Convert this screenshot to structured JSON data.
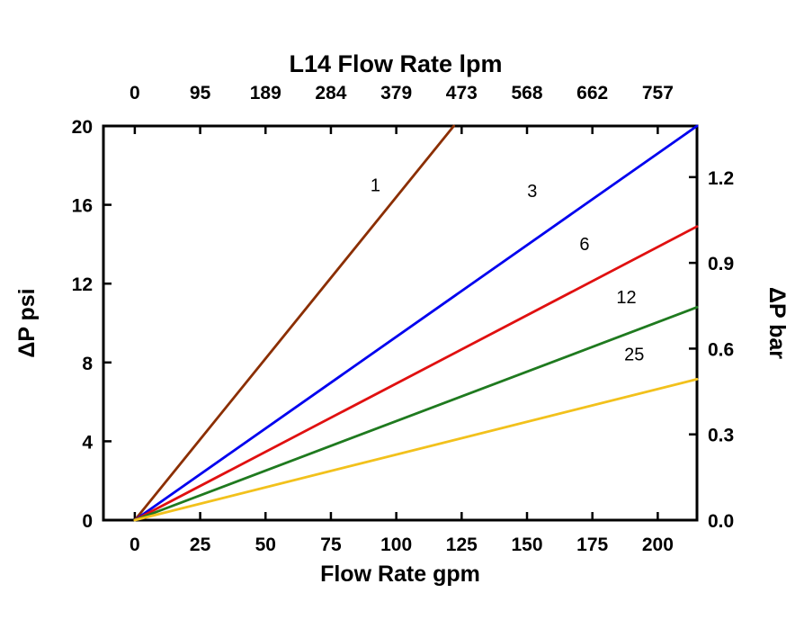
{
  "chart_data": {
    "type": "line",
    "top_axis_title": "L14 Flow Rate lpm",
    "bottom_axis_title": "Flow Rate gpm",
    "left_axis_title": "ΔP psi",
    "right_axis_title": "ΔP bar",
    "xlabel": "Flow Rate gpm",
    "ylabel": "ΔP psi",
    "xlim": [
      -12,
      215
    ],
    "ylim": [
      0,
      20
    ],
    "x_ticks_gpm": [
      0,
      25,
      50,
      75,
      100,
      125,
      150,
      175,
      200
    ],
    "top_tick_labels_lpm": [
      "0",
      "95",
      "189",
      "284",
      "379",
      "473",
      "568",
      "662",
      "757"
    ],
    "y_ticks_psi": [
      0,
      4,
      8,
      12,
      16,
      20
    ],
    "right_ticks_bar": [
      "0.0",
      "0.3",
      "0.6",
      "0.9",
      "1.2"
    ],
    "psi_per_bar": 14.5038,
    "frame_color": "#000000",
    "series": [
      {
        "name": "1",
        "color": "#8B2E00",
        "x": [
          0,
          122
        ],
        "y": [
          0,
          20
        ],
        "label_x": 92,
        "label_y": 16.7
      },
      {
        "name": "3",
        "color": "#0000EE",
        "x": [
          0,
          215
        ],
        "y": [
          0,
          20
        ],
        "label_x": 152,
        "label_y": 16.4
      },
      {
        "name": "6",
        "color": "#E01010",
        "x": [
          0,
          215
        ],
        "y": [
          0,
          14.9
        ],
        "label_x": 172,
        "label_y": 13.7
      },
      {
        "name": "12",
        "color": "#1F7A1F",
        "x": [
          0,
          215
        ],
        "y": [
          0,
          10.8
        ],
        "label_x": 188,
        "label_y": 11.0
      },
      {
        "name": "25",
        "color": "#F2C11C",
        "x": [
          0,
          215
        ],
        "y": [
          0,
          7.15
        ],
        "label_x": 191,
        "label_y": 8.1
      }
    ]
  }
}
